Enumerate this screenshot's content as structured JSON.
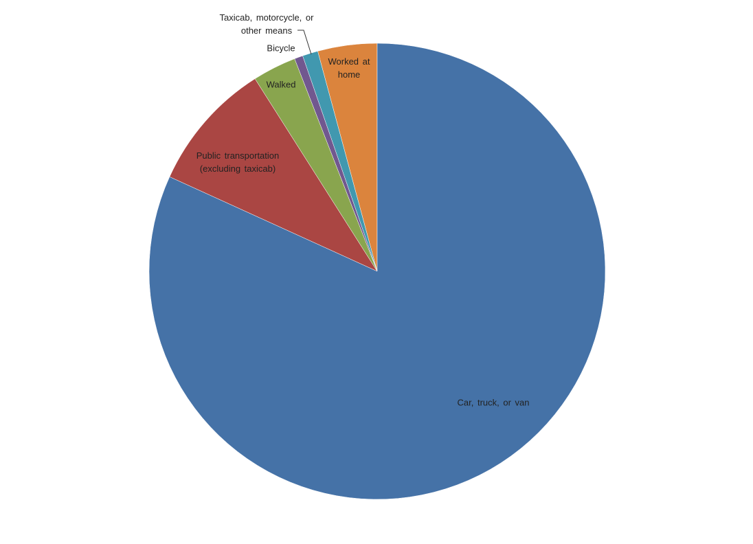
{
  "chart_data": {
    "type": "pie",
    "categories": [
      "Car, truck, or van",
      "Public transportation (excluding taxicab)",
      "Walked",
      "Bicycle",
      "Taxicab, motorcycle, or other means",
      "Worked at home"
    ],
    "values": [
      81.8,
      9.2,
      3.1,
      0.6,
      1.1,
      4.2
    ],
    "colors": [
      "#4572a7",
      "#aa4643",
      "#89a54e",
      "#71588f",
      "#4198af",
      "#db843d"
    ]
  }
}
